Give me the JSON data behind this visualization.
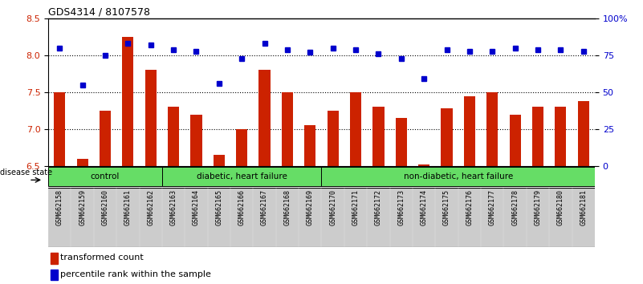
{
  "title": "GDS4314 / 8107578",
  "samples": [
    "GSM662158",
    "GSM662159",
    "GSM662160",
    "GSM662161",
    "GSM662162",
    "GSM662163",
    "GSM662164",
    "GSM662165",
    "GSM662166",
    "GSM662167",
    "GSM662168",
    "GSM662169",
    "GSM662170",
    "GSM662171",
    "GSM662172",
    "GSM662173",
    "GSM662174",
    "GSM662175",
    "GSM662176",
    "GSM662177",
    "GSM662178",
    "GSM662179",
    "GSM662180",
    "GSM662181"
  ],
  "red_values": [
    7.5,
    6.6,
    7.25,
    8.25,
    7.8,
    7.3,
    7.2,
    6.65,
    7.0,
    7.8,
    7.5,
    7.05,
    7.25,
    7.5,
    7.3,
    7.15,
    6.52,
    7.28,
    7.45,
    7.5,
    7.2,
    7.3,
    7.3,
    7.38
  ],
  "blue_values": [
    80,
    55,
    75,
    83,
    82,
    79,
    78,
    56,
    73,
    83,
    79,
    77,
    80,
    79,
    76,
    73,
    59,
    79,
    78,
    78,
    80,
    79,
    79,
    78
  ],
  "ylim_left": [
    6.5,
    8.5
  ],
  "yticks_left": [
    6.5,
    7.0,
    7.5,
    8.0,
    8.5
  ],
  "ytick_labels_right": [
    "0",
    "25",
    "50",
    "75",
    "100%"
  ],
  "groups": [
    {
      "label": "control",
      "start": 0,
      "end": 5
    },
    {
      "label": "diabetic, heart failure",
      "start": 5,
      "end": 12
    },
    {
      "label": "non-diabetic, heart failure",
      "start": 12,
      "end": 24
    }
  ],
  "bar_color": "#CC2200",
  "dot_color": "#0000CC",
  "bar_width": 0.5,
  "legend_bar_label": "transformed count",
  "legend_dot_label": "percentile rank within the sample",
  "disease_state_label": "disease state",
  "tick_label_color_left": "#CC2200",
  "tick_label_color_right": "#0000CC",
  "group_color": "#66DD66",
  "tick_bg_color": "#CCCCCC"
}
